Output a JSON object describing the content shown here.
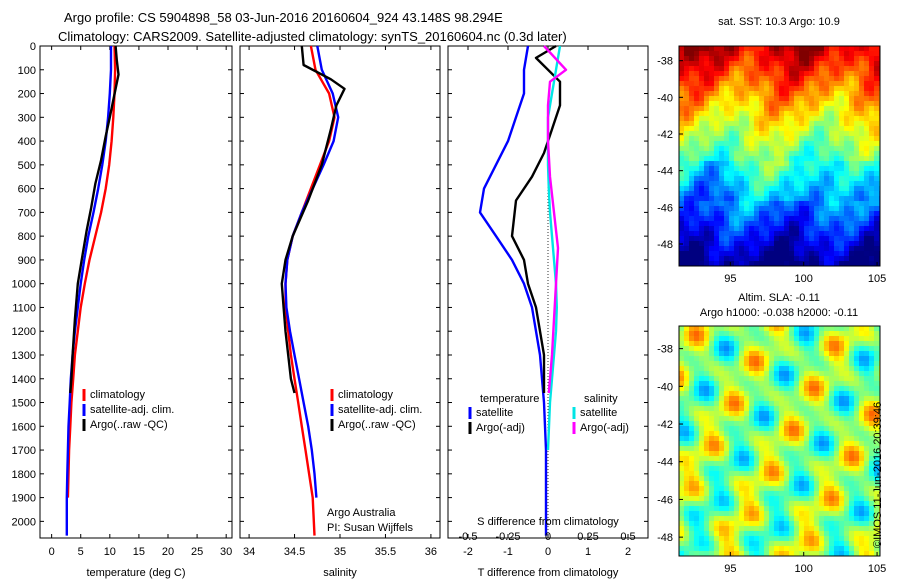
{
  "title_line1": "Argo profile: CS 5904898_58 03-Jun-2016 20160604_924 43.148S 98.294E",
  "title_line2": "Climatology: CARS2009. Satellite-adjusted climatology: synTS_20160604.nc (0.3d later)",
  "stamp": "©IMOS 11-Jun-2016 20:39:46",
  "colors": {
    "climatology": "#ff0000",
    "satellite": "#0000ff",
    "argo": "#000000",
    "sat_salinity": "#00e5e5",
    "argo_salinity": "#ff00ff"
  },
  "chart_data": [
    {
      "type": "line",
      "xlabel": "temperature (deg C)",
      "xlim": [
        -2,
        31
      ],
      "ylim": [
        2070,
        0
      ],
      "yreversed": true,
      "xticks": [
        0,
        5,
        10,
        15,
        20,
        25,
        30
      ],
      "yticks": [
        0,
        100,
        200,
        300,
        400,
        500,
        600,
        700,
        800,
        900,
        1000,
        1100,
        1200,
        1300,
        1400,
        1500,
        1600,
        1700,
        1800,
        1900,
        2000
      ],
      "legend": [
        "climatology",
        "satellite-adj. clim.",
        "Argo(..raw -QC)"
      ],
      "legend_position": "lower-center",
      "series": [
        {
          "name": "climatology",
          "color": "#ff0000",
          "x": [
            10.8,
            10.9,
            10.8,
            10.6,
            10.3,
            9.9,
            9.3,
            8.5,
            7.5,
            6.5,
            5.7,
            5.0,
            4.5,
            4.0,
            3.7,
            3.4,
            3.2,
            3.0,
            2.9,
            2.8
          ],
          "y": [
            0,
            100,
            200,
            300,
            400,
            500,
            600,
            700,
            800,
            900,
            1000,
            1100,
            1200,
            1300,
            1400,
            1500,
            1600,
            1700,
            1800,
            1900
          ]
        },
        {
          "name": "satellite-adj. clim.",
          "color": "#0000ff",
          "x": [
            10.2,
            10.2,
            10.0,
            9.7,
            9.3,
            8.7,
            8.0,
            7.2,
            6.3,
            5.6,
            5.0,
            4.5,
            4.0,
            3.6,
            3.3,
            3.1,
            2.9,
            2.8,
            2.7,
            2.6,
            2.6
          ],
          "y": [
            0,
            100,
            200,
            300,
            400,
            500,
            600,
            700,
            800,
            900,
            1000,
            1100,
            1200,
            1300,
            1400,
            1500,
            1600,
            1700,
            1800,
            1900,
            2060
          ]
        },
        {
          "name": "Argo(..raw -QC)",
          "color": "#000000",
          "x": [
            11.0,
            11.2,
            11.5,
            11.0,
            10.5,
            10.0,
            9.3,
            8.5,
            7.5,
            6.8,
            6.0,
            5.3,
            4.5,
            4.0,
            3.6,
            3.4,
            3.2
          ],
          "y": [
            0,
            60,
            120,
            180,
            240,
            300,
            380,
            480,
            580,
            680,
            780,
            880,
            1000,
            1150,
            1300,
            1400,
            1460
          ]
        }
      ]
    },
    {
      "type": "line",
      "xlabel": "salinity",
      "xlim": [
        33.9,
        36.1
      ],
      "ylim": [
        2070,
        0
      ],
      "yreversed": true,
      "xticks": [
        34,
        34.5,
        35,
        35.5,
        36
      ],
      "legend": [
        "climatology",
        "satellite-adj. clim.",
        "Argo(..raw -QC)"
      ],
      "legend_position": "lower-right",
      "annotation_lines": [
        "Argo Australia",
        "PI: Susan Wijffels"
      ],
      "series": [
        {
          "name": "climatology",
          "color": "#ff0000",
          "x": [
            34.68,
            34.73,
            34.88,
            34.94,
            34.88,
            34.78,
            34.68,
            34.58,
            34.48,
            34.42,
            34.4,
            34.4,
            34.43,
            34.46,
            34.5,
            34.54,
            34.58,
            34.62,
            34.66,
            34.7,
            34.72
          ],
          "y": [
            0,
            100,
            200,
            300,
            400,
            500,
            600,
            700,
            800,
            900,
            1000,
            1100,
            1200,
            1300,
            1400,
            1500,
            1600,
            1700,
            1800,
            1900,
            2060
          ]
        },
        {
          "name": "satellite-adj. clim.",
          "color": "#0000ff",
          "x": [
            34.75,
            34.8,
            34.92,
            34.98,
            34.93,
            34.82,
            34.7,
            34.58,
            34.48,
            34.42,
            34.4,
            34.41,
            34.45,
            34.5,
            34.55,
            34.6,
            34.65,
            34.69,
            34.72,
            34.74
          ],
          "y": [
            0,
            100,
            200,
            300,
            400,
            500,
            600,
            700,
            800,
            900,
            1000,
            1100,
            1200,
            1300,
            1400,
            1500,
            1600,
            1700,
            1800,
            1900
          ]
        },
        {
          "name": "Argo(..raw -QC)",
          "color": "#000000",
          "x": [
            34.58,
            34.6,
            34.9,
            35.05,
            34.96,
            34.9,
            34.8,
            34.65,
            34.48,
            34.4,
            34.36,
            34.38,
            34.4,
            34.43,
            34.46,
            34.5
          ],
          "y": [
            0,
            80,
            140,
            180,
            250,
            350,
            500,
            650,
            800,
            900,
            1000,
            1100,
            1200,
            1300,
            1400,
            1460
          ]
        }
      ]
    },
    {
      "type": "line",
      "xlabel": "T difference from climatology",
      "second_axis_label": "S difference from climatology",
      "xlim": [
        -2.5,
        2.5
      ],
      "ylim": [
        2070,
        0
      ],
      "yreversed": true,
      "xticks": [
        -2,
        -1,
        0,
        1,
        2
      ],
      "second_xticks": [
        -0.5,
        -0.25,
        0,
        0.25,
        0.5
      ],
      "legend_groups": [
        {
          "heading": "temperature",
          "entries": [
            "satellite",
            "Argo(-adj)"
          ]
        },
        {
          "heading": "salinity",
          "entries": [
            "satellite",
            "Argo(-adj)"
          ]
        }
      ],
      "legend_position": "lower-center",
      "series": [
        {
          "name": "satellite",
          "group": "temperature",
          "color": "#0000ff",
          "x": [
            -0.5,
            -0.6,
            -0.6,
            -0.8,
            -1.0,
            -1.3,
            -1.6,
            -1.7,
            -1.3,
            -0.9,
            -0.6,
            -0.4,
            -0.3,
            -0.2,
            -0.15,
            -0.1,
            -0.05,
            -0.05
          ],
          "y": [
            0,
            100,
            200,
            300,
            400,
            500,
            600,
            700,
            800,
            900,
            1000,
            1100,
            1200,
            1300,
            1400,
            1500,
            1700,
            2060
          ]
        },
        {
          "name": "Argo(-adj)",
          "group": "temperature",
          "color": "#000000",
          "x": [
            0.2,
            -0.3,
            0.3,
            0.3,
            0.1,
            -0.1,
            -0.4,
            -0.8,
            -0.9,
            -0.6,
            -0.5,
            -0.3,
            -0.2,
            -0.1,
            -0.1
          ],
          "y": [
            0,
            50,
            150,
            250,
            350,
            450,
            550,
            650,
            800,
            900,
            1000,
            1100,
            1200,
            1300,
            1460
          ]
        },
        {
          "name": "satellite",
          "group": "salinity",
          "color": "#00e5e5",
          "x": [
            0.3,
            0.2,
            0.1,
            0.0,
            0.0,
            0.0,
            0.02,
            0.05,
            0.1,
            0.15,
            0.2,
            0.22,
            0.2,
            0.15,
            0.1,
            0.05,
            0.0
          ],
          "y": [
            0,
            100,
            200,
            300,
            400,
            500,
            600,
            700,
            800,
            900,
            1000,
            1100,
            1200,
            1300,
            1400,
            1500,
            1700
          ]
        },
        {
          "name": "Argo(-adj)",
          "group": "salinity",
          "color": "#ff00ff",
          "x": [
            -0.1,
            0.45,
            0.05,
            0.0,
            0.0,
            0.05,
            0.15,
            0.25,
            0.2,
            0.15,
            0.1,
            0.05,
            0.02
          ],
          "y": [
            0,
            100,
            150,
            250,
            400,
            550,
            700,
            850,
            1000,
            1150,
            1300,
            1400,
            1460
          ]
        }
      ]
    },
    {
      "type": "heatmap",
      "title": "sat. SST: 10.3 Argo: 10.9",
      "xlim": [
        91.5,
        105.2
      ],
      "ylim": [
        -49.2,
        -37.2
      ],
      "xticks": [
        95,
        100,
        105
      ],
      "yticks": [
        -38,
        -40,
        -42,
        -44,
        -46,
        -48
      ],
      "colormap": "jet",
      "gradient": "warm in north, cold in south"
    },
    {
      "type": "heatmap",
      "title_lines": [
        "Altim. SLA: -0.11",
        "Argo h1000: -0.038 h2000: -0.11"
      ],
      "xlim": [
        91.5,
        105.2
      ],
      "ylim": [
        -49.0,
        -36.8
      ],
      "xticks": [
        95,
        100,
        105
      ],
      "yticks": [
        -38,
        -40,
        -42,
        -44,
        -46,
        -48
      ],
      "colormap": "jet",
      "gradient": "mostly neutral green with scattered highs and lows"
    }
  ]
}
